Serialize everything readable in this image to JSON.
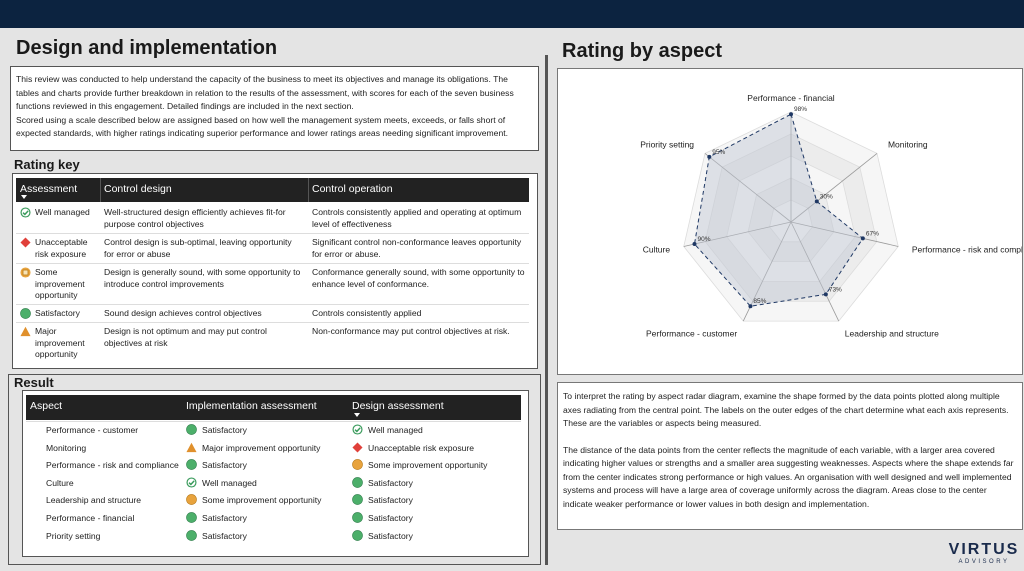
{
  "header": {
    "left_title": "Design and implementation",
    "right_title": "Rating by aspect"
  },
  "intro": [
    "This review was conducted to help understand the capacity of the business to meet its objectives and manage its obligations. The tables and charts provide further breakdown in relation to the results of the assessment, with scores for each of the seven business functions reviewed in this engagement. Detailed findings are included in the next section.",
    "Scored using a scale described below are assigned based on how well the management system meets, exceeds, or falls short of expected standards, with higher ratings indicating superior performance and lower ratings  areas needing significant improvement."
  ],
  "rating_key": {
    "title": "Rating key",
    "columns": [
      "Assessment",
      "Control design",
      "Control operation"
    ],
    "rows": [
      [
        "Well managed",
        "Well-structured design efficiently achieves fit-for purpose control objectives",
        "Controls consistently applied and operating at optimum level of effectiveness"
      ],
      [
        "Unacceptable risk exposure",
        "Control design is sub-optimal, leaving opportunity for error or abuse",
        "Significant control non-conformance leaves opportunity for error or abuse."
      ],
      [
        "Some improvement opportunity",
        "Design is generally sound, with some opportunity to introduce control improvements",
        "Conformance generally sound, with some opportunity to enhance level of conformance."
      ],
      [
        "Satisfactory",
        "Sound design achieves control objectives",
        "Controls consistently applied"
      ],
      [
        "Major improvement opportunity",
        "Design is not optimum and may put control objectives at risk",
        "Non-conformance may put control objectives at risk."
      ]
    ]
  },
  "result": {
    "title": "Result",
    "columns": [
      "Aspect",
      "Implementation assessment",
      "Design assessment"
    ],
    "rows": [
      [
        "Performance - customer",
        "Satisfactory",
        "Well managed"
      ],
      [
        "Monitoring",
        "Major improvement opportunity",
        "Unacceptable risk exposure"
      ],
      [
        "Performance - risk and compliance",
        "Satisfactory",
        "Some improvement opportunity"
      ],
      [
        "Culture",
        "Well managed",
        "Satisfactory"
      ],
      [
        "Leadership and structure",
        "Some improvement opportunity",
        "Satisfactory"
      ],
      [
        "Performance - financial",
        "Satisfactory",
        "Satisfactory"
      ],
      [
        "Priority setting",
        "Satisfactory",
        "Satisfactory"
      ]
    ]
  },
  "chart_data": {
    "type": "radar",
    "categories": [
      "Performance - financial",
      "Monitoring",
      "Performance - risk and compliance",
      "Leadership and structure",
      "Performance - customer",
      "Culture",
      "Priority setting"
    ],
    "series": [
      {
        "color": "#1f3864",
        "values": [
          98,
          30,
          67,
          73,
          85,
          90,
          95
        ],
        "value_labels": [
          "98%",
          "30%",
          "67%",
          "73%",
          "85%",
          "90%",
          "95%"
        ]
      }
    ],
    "rlim": [
      0,
      100
    ],
    "rticks": [
      20,
      40,
      60,
      80,
      100
    ]
  },
  "interpretation": [
    "To interpret the rating by aspect radar diagram, examine the shape formed by the data points plotted along multiple axes radiating from the central point. The labels on the outer edges of the chart determine what each axis represents. These are the variables or aspects being measured.",
    "The distance of the data points from the center reflects the magnitude of each variable, with a larger area covered indicating higher values or strengths and a smaller area suggesting weaknesses. Aspects where the shape extends far from the center indicates strong performance or high values. An organisation with well designed and well implemented systems and process will have a large area of coverage uniformly across the diagram. Areas close to the center indicate weaker performance or lower values in both design and implementation."
  ],
  "logo": {
    "name": "VIRTUS",
    "tagline": "ADVISORY"
  }
}
